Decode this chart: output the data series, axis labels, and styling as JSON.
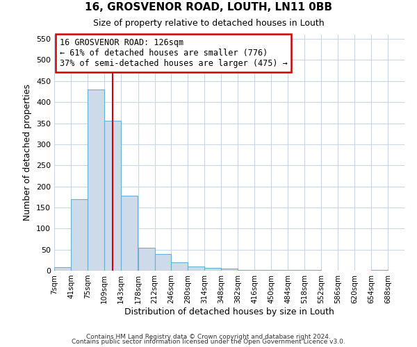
{
  "title": "16, GROSVENOR ROAD, LOUTH, LN11 0BB",
  "subtitle": "Size of property relative to detached houses in Louth",
  "xlabel": "Distribution of detached houses by size in Louth",
  "ylabel": "Number of detached properties",
  "bin_edges": [
    7,
    41,
    75,
    109,
    143,
    178,
    212,
    246,
    280,
    314,
    348,
    382,
    416,
    450,
    484,
    518,
    552,
    586,
    620,
    654,
    688,
    722
  ],
  "bar_heights": [
    8,
    170,
    430,
    355,
    178,
    55,
    40,
    20,
    10,
    7,
    5,
    1,
    1,
    1,
    1,
    1,
    0,
    0,
    0,
    1,
    0
  ],
  "bar_face_color": "#ccdaea",
  "bar_edge_color": "#6aafd6",
  "vline_x": 126,
  "vline_color": "#cc0000",
  "annotation_text": "16 GROSVENOR ROAD: 126sqm\n← 61% of detached houses are smaller (776)\n37% of semi-detached houses are larger (475) →",
  "annotation_box_color": "#ffffff",
  "annotation_box_edgecolor": "#cc0000",
  "ylim": [
    0,
    560
  ],
  "yticks": [
    0,
    50,
    100,
    150,
    200,
    250,
    300,
    350,
    400,
    450,
    500,
    550
  ],
  "bg_color": "#ffffff",
  "grid_color": "#c8d8e8",
  "footer1": "Contains HM Land Registry data © Crown copyright and database right 2024.",
  "footer2": "Contains public sector information licensed under the Open Government Licence v3.0."
}
